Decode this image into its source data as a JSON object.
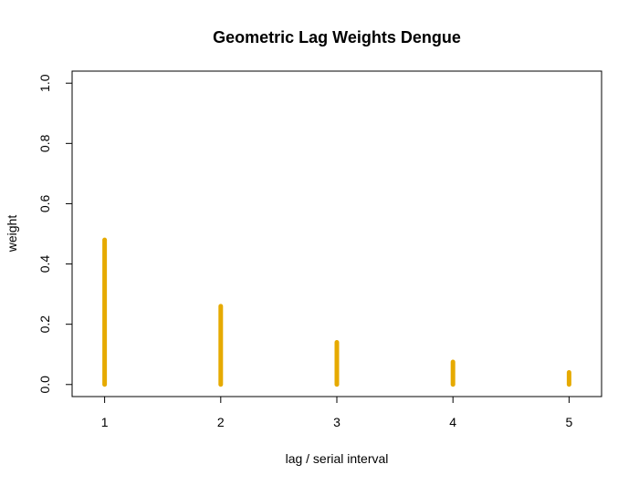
{
  "chart_data": {
    "type": "bar",
    "title": "Geometric Lag Weights Dengue",
    "xlabel": "lag / serial interval",
    "ylabel": "weight",
    "x": [
      1,
      2,
      3,
      4,
      5
    ],
    "values": [
      0.48,
      0.26,
      0.14,
      0.075,
      0.04
    ],
    "xlim": [
      0.72,
      5.28
    ],
    "ylim": [
      -0.04,
      1.04
    ],
    "xticks": [
      "1",
      "2",
      "3",
      "4",
      "5"
    ],
    "yticks": [
      "0.0",
      "0.2",
      "0.4",
      "0.6",
      "0.8",
      "1.0"
    ],
    "color": "#E6AA00",
    "grid": false,
    "legend": "none"
  }
}
